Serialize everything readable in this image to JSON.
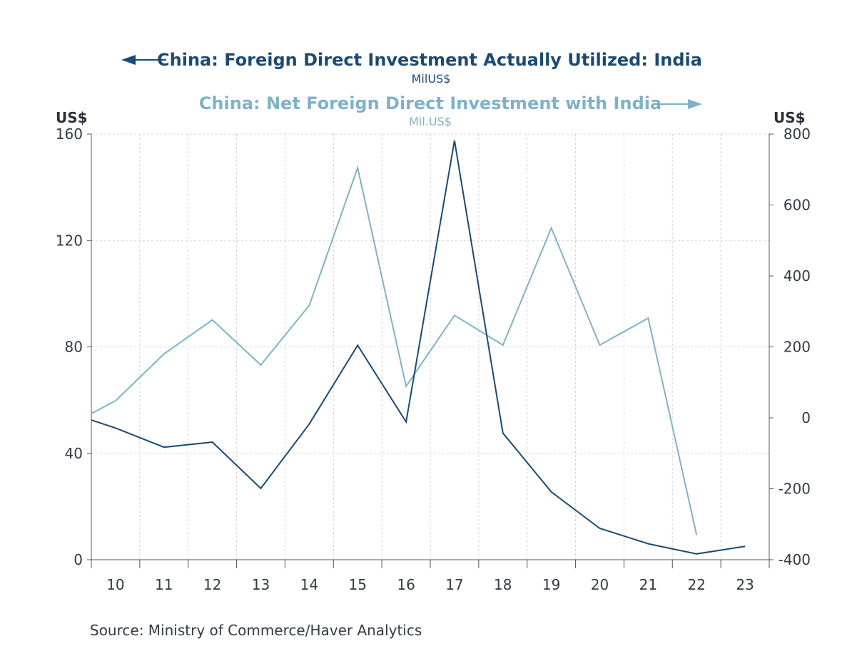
{
  "chart_data": {
    "type": "line",
    "x": [
      "10",
      "11",
      "12",
      "13",
      "14",
      "15",
      "16",
      "17",
      "18",
      "19",
      "20",
      "21",
      "22",
      "23"
    ],
    "x_positions": [
      {
        "label": "10",
        "x": [
          2009.5,
          2010.0
        ]
      },
      {
        "label": "11",
        "x": [
          2011.0
        ]
      }
    ],
    "series": [
      {
        "name": "China: Foreign Direct Investment Actually Utilized: India",
        "unit": "MilUS$",
        "axis": "left",
        "color": "#1b4a72",
        "arrow": "left",
        "points": [
          [
            2009.5,
            52.5
          ],
          [
            2010.0,
            49.5
          ],
          [
            2011.0,
            42.3
          ],
          [
            2012.0,
            44.2
          ],
          [
            2013.0,
            26.8
          ],
          [
            2014.0,
            51.0
          ],
          [
            2015.0,
            80.6
          ],
          [
            2016.0,
            51.8
          ],
          [
            2017.0,
            157.6
          ],
          [
            2018.0,
            47.6
          ],
          [
            2019.0,
            25.5
          ],
          [
            2020.0,
            11.8
          ],
          [
            2021.0,
            6.0
          ],
          [
            2022.0,
            2.2
          ],
          [
            2023.0,
            5.0
          ]
        ]
      },
      {
        "name": "China: Net Foreign Direct Investment with India",
        "unit": "Mil.US$",
        "axis": "right",
        "color": "#7fb2c8",
        "arrow": "right",
        "points": [
          [
            2009.5,
            12
          ],
          [
            2010.0,
            48
          ],
          [
            2011.0,
            180
          ],
          [
            2012.0,
            276
          ],
          [
            2013.0,
            149
          ],
          [
            2014.0,
            317
          ],
          [
            2015.0,
            705
          ],
          [
            2016.0,
            89
          ],
          [
            2017.0,
            289
          ],
          [
            2018.0,
            205
          ],
          [
            2019.0,
            535
          ],
          [
            2020.0,
            205
          ],
          [
            2021.0,
            281
          ],
          [
            2022.0,
            -330
          ]
        ]
      }
    ],
    "left_axis": {
      "label": "US$",
      "min": 0,
      "max": 160,
      "ticks": [
        0,
        40,
        80,
        120,
        160
      ]
    },
    "right_axis": {
      "label": "US$",
      "min": -400,
      "max": 800,
      "ticks": [
        -400,
        -200,
        0,
        200,
        400,
        600,
        800
      ],
      "tick_labels": [
        "-400",
        "-200",
        "0",
        "200",
        "400",
        "600",
        "800"
      ]
    },
    "xlim": [
      2009.5,
      2023.5
    ],
    "grid": true,
    "legend_placement": "top-center",
    "source": "Source:  Ministry of Commerce/Haver Analytics"
  }
}
